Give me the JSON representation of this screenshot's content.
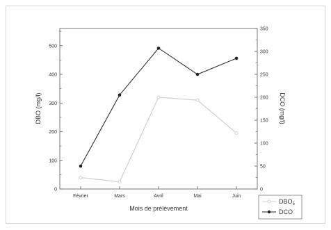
{
  "chart_data": {
    "type": "line",
    "categories": [
      "Février",
      "Mars",
      "Avril",
      "Mai",
      "Juin"
    ],
    "xlabel": "Mois de prélèvement",
    "ylabel_left": "DBO  (mg/l)",
    "ylabel_right": "DCO (mg/l)",
    "ylim_left": [
      0,
      560
    ],
    "yticks_left": [
      0,
      100,
      200,
      300,
      400,
      500
    ],
    "ylim_right": [
      0,
      350
    ],
    "yticks_right": [
      0,
      50,
      100,
      150,
      200,
      250,
      300,
      350
    ],
    "series": [
      {
        "name": "DBO",
        "name_subscript": "5",
        "axis": "left",
        "marker": "open-circle",
        "color": "#cfcfcf",
        "values": [
          40,
          25,
          320,
          310,
          195
        ]
      },
      {
        "name": "DCO",
        "axis": "right",
        "marker": "filled-circle",
        "color": "#222222",
        "values": [
          50,
          205,
          307,
          250,
          285
        ]
      }
    ],
    "legend_position": "bottom-right",
    "grid": false
  }
}
